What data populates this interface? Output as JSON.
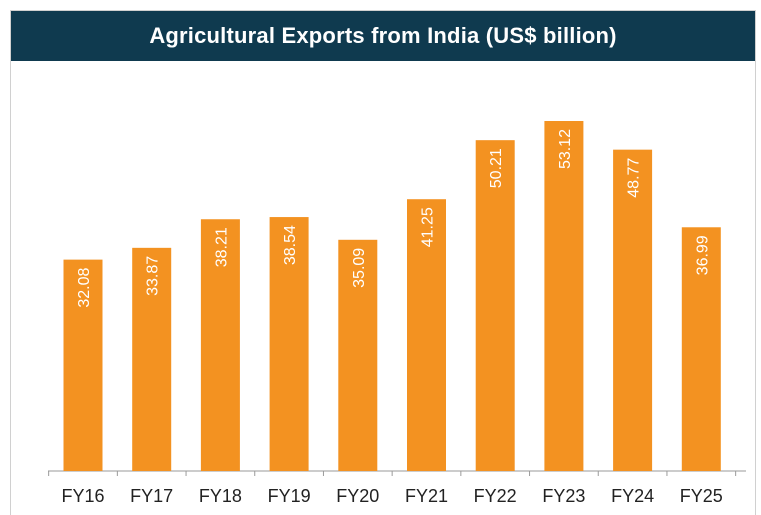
{
  "chart_data": {
    "type": "bar",
    "title": "Agricultural Exports from India (US$ billion)",
    "categories": [
      "FY16",
      "FY17",
      "FY18",
      "FY19",
      "FY20",
      "FY21",
      "FY22",
      "FY23",
      "FY24",
      "FY25"
    ],
    "values": [
      32.08,
      33.87,
      38.21,
      38.54,
      35.09,
      41.25,
      50.21,
      53.12,
      48.77,
      36.99
    ],
    "data_labels": [
      "32.08",
      "33.87",
      "38.21",
      "38.54",
      "35.09",
      "41.25",
      "50.21",
      "53.12",
      "48.77",
      "36.99"
    ],
    "xlabel": "",
    "ylabel": "",
    "ylim": [
      0,
      60
    ],
    "grid": false,
    "legend": "none",
    "colors": {
      "bar": "#f39221",
      "header_background": "#0f3a4f",
      "header_text": "#ffffff",
      "data_label": "#ffffff",
      "axis": "#9a9a9a"
    }
  }
}
